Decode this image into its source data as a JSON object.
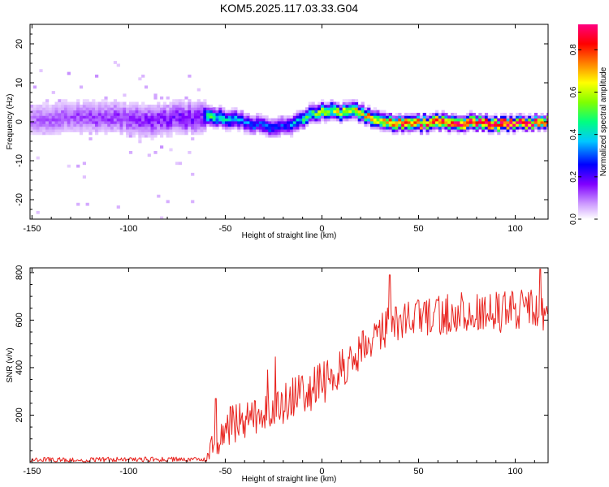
{
  "title": "KOM5.2025.117.03.33.G04",
  "chart_data": [
    {
      "type": "heatmap",
      "xlabel": "Height of straight line (km)",
      "ylabel": "Frequency (Hz)",
      "xlim": [
        -151,
        117
      ],
      "ylim": [
        -25,
        25
      ],
      "xticks": [
        -150,
        -100,
        -50,
        0,
        50,
        100
      ],
      "yticks": [
        -20,
        -10,
        0,
        10,
        20
      ],
      "colorbar": {
        "label": "Normalized spectral amplitude",
        "range": [
          0.0,
          0.92
        ],
        "ticks": [
          "0.0",
          "0.2",
          "0.4",
          "0.6",
          "0.8"
        ],
        "colors": [
          "#ffffff",
          "#cc99ff",
          "#8000ff",
          "#0000ff",
          "#00c8ff",
          "#00ff80",
          "#80ff00",
          "#ffff00",
          "#ff8000",
          "#ff0000",
          "#ff0080"
        ]
      },
      "ridge_center": [
        {
          "x": -150,
          "f": 0.5
        },
        {
          "x": -120,
          "f": 1
        },
        {
          "x": -90,
          "f": 0
        },
        {
          "x": -65,
          "f": 1
        },
        {
          "x": -60,
          "f": 1
        },
        {
          "x": -45,
          "f": 0.5
        },
        {
          "x": -35,
          "f": -1
        },
        {
          "x": -25,
          "f": -2
        },
        {
          "x": -15,
          "f": -1
        },
        {
          "x": -8,
          "f": 1
        },
        {
          "x": 0,
          "f": 2.5
        },
        {
          "x": 8,
          "f": 2
        },
        {
          "x": 15,
          "f": 3
        },
        {
          "x": 22,
          "f": 1
        },
        {
          "x": 30,
          "f": -0.5
        },
        {
          "x": 45,
          "f": -0.8
        },
        {
          "x": 60,
          "f": -0.5
        },
        {
          "x": 75,
          "f": -0.5
        },
        {
          "x": 90,
          "f": -1
        },
        {
          "x": 105,
          "f": -0.5
        },
        {
          "x": 117,
          "f": -0.3
        }
      ],
      "ridge_amplitude": [
        {
          "x": -151,
          "a": 0.12
        },
        {
          "x": -62,
          "a": 0.18
        },
        {
          "x": -60,
          "a": 0.45
        },
        {
          "x": -40,
          "a": 0.3
        },
        {
          "x": -20,
          "a": 0.28
        },
        {
          "x": 0,
          "a": 0.55
        },
        {
          "x": 20,
          "a": 0.65
        },
        {
          "x": 40,
          "a": 0.75
        },
        {
          "x": 60,
          "a": 0.85
        },
        {
          "x": 80,
          "a": 0.9
        },
        {
          "x": 117,
          "a": 0.85
        }
      ],
      "ridge_halfwidth_hz": [
        {
          "x": -151,
          "w": 3.5
        },
        {
          "x": -62,
          "w": 3.5
        },
        {
          "x": -60,
          "w": 1.8
        },
        {
          "x": -20,
          "w": 1.8
        },
        {
          "x": 0,
          "w": 1.6
        },
        {
          "x": 117,
          "w": 1.2
        }
      ]
    },
    {
      "type": "line",
      "xlabel": "Height of straight line (km)",
      "ylabel": "SNR (v/v)",
      "xlim": [
        -151,
        117
      ],
      "ylim": [
        0,
        820
      ],
      "xticks": [
        -150,
        -100,
        -50,
        0,
        50,
        100
      ],
      "yticks": [
        200,
        400,
        600,
        800
      ],
      "color": "#e8231e",
      "trend": [
        {
          "x": -151,
          "y": 12
        },
        {
          "x": -60,
          "y": 15
        },
        {
          "x": -55,
          "y": 100
        },
        {
          "x": -50,
          "y": 150
        },
        {
          "x": -35,
          "y": 190
        },
        {
          "x": -20,
          "y": 250
        },
        {
          "x": -5,
          "y": 310
        },
        {
          "x": 5,
          "y": 360
        },
        {
          "x": 15,
          "y": 430
        },
        {
          "x": 25,
          "y": 520
        },
        {
          "x": 35,
          "y": 580
        },
        {
          "x": 50,
          "y": 610
        },
        {
          "x": 70,
          "y": 630
        },
        {
          "x": 90,
          "y": 630
        },
        {
          "x": 117,
          "y": 640
        }
      ],
      "noise_amplitude": [
        {
          "x": -151,
          "n": 10
        },
        {
          "x": -60,
          "n": 10
        },
        {
          "x": -55,
          "n": 80
        },
        {
          "x": 0,
          "n": 90
        },
        {
          "x": 40,
          "n": 80
        },
        {
          "x": 117,
          "n": 95
        }
      ],
      "peaks": [
        {
          "x": -55,
          "y": 270
        },
        {
          "x": -28,
          "y": 390
        },
        {
          "x": -24,
          "y": 445
        },
        {
          "x": 35,
          "y": 790
        },
        {
          "x": 113,
          "y": 815
        }
      ]
    }
  ]
}
